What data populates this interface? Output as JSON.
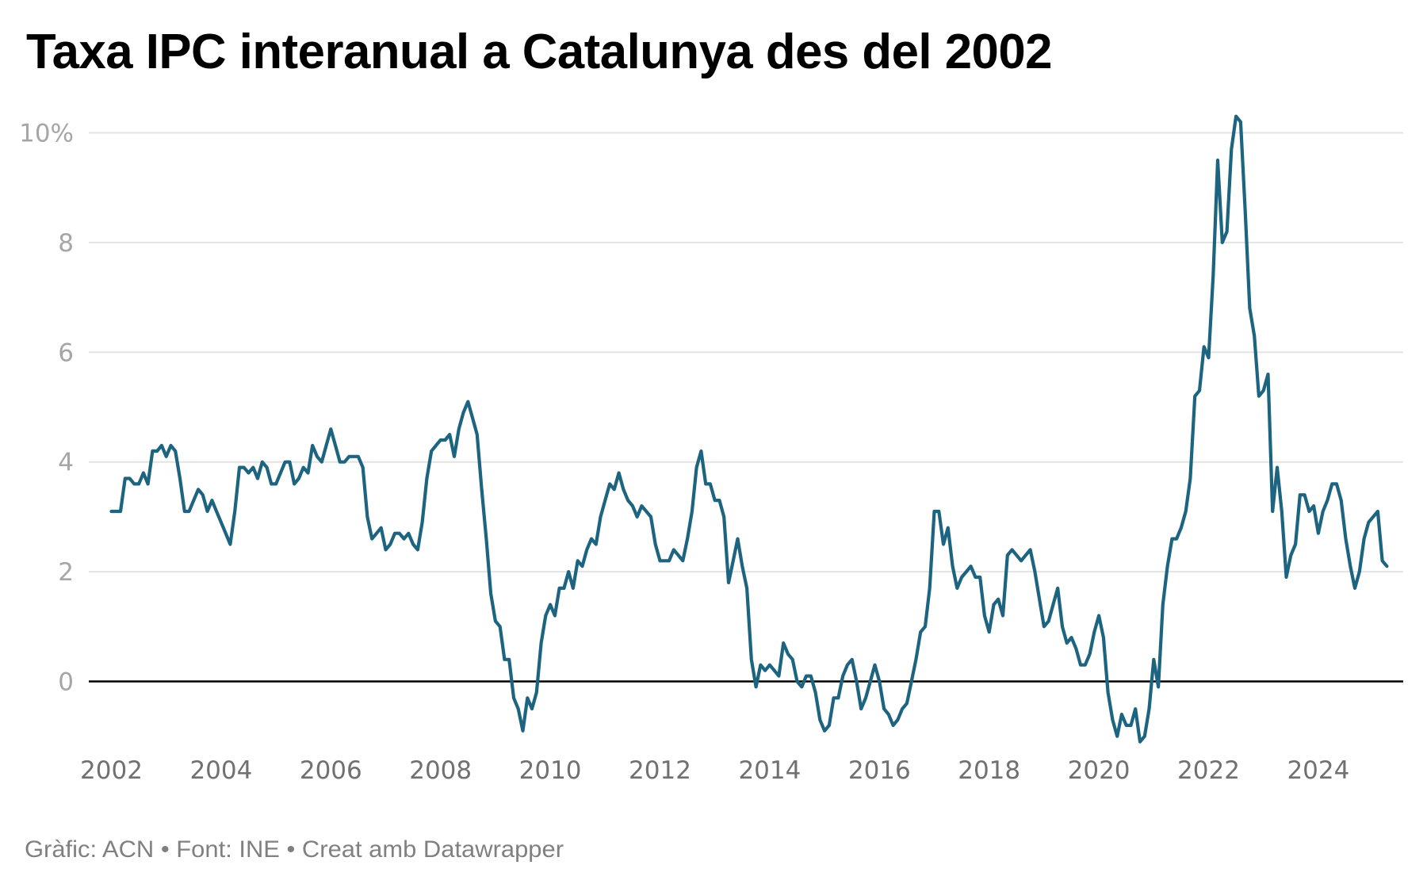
{
  "chart_data": {
    "type": "line",
    "title": "Taxa IPC interanual a Catalunya des del 2002",
    "xlabel": "",
    "ylabel": "",
    "ylim": [
      -1.2,
      10.5
    ],
    "xlim": [
      2002,
      2025.75
    ],
    "grid": true,
    "y_ticks": [
      {
        "value": 10,
        "label": "10%"
      },
      {
        "value": 8,
        "label": "8"
      },
      {
        "value": 6,
        "label": "6"
      },
      {
        "value": 4,
        "label": "4"
      },
      {
        "value": 2,
        "label": "2"
      },
      {
        "value": 0,
        "label": "0"
      }
    ],
    "x_ticks": [
      {
        "value": 2002,
        "label": "2002"
      },
      {
        "value": 2004,
        "label": "2004"
      },
      {
        "value": 2006,
        "label": "2006"
      },
      {
        "value": 2008,
        "label": "2008"
      },
      {
        "value": 2010,
        "label": "2010"
      },
      {
        "value": 2012,
        "label": "2012"
      },
      {
        "value": 2014,
        "label": "2014"
      },
      {
        "value": 2016,
        "label": "2016"
      },
      {
        "value": 2018,
        "label": "2018"
      },
      {
        "value": 2020,
        "label": "2020"
      },
      {
        "value": 2022,
        "label": "2022"
      },
      {
        "value": 2024,
        "label": "2024"
      }
    ],
    "series": [
      {
        "name": "Taxa IPC interanual (%)",
        "color": "#1d6480",
        "start": "2002-01",
        "frequency": "monthly",
        "values": [
          3.1,
          3.1,
          3.1,
          3.7,
          3.7,
          3.6,
          3.6,
          3.8,
          3.6,
          4.2,
          4.2,
          4.3,
          4.1,
          4.3,
          4.2,
          3.7,
          3.1,
          3.1,
          3.3,
          3.5,
          3.4,
          3.1,
          3.3,
          3.1,
          2.9,
          2.7,
          2.5,
          3.1,
          3.9,
          3.9,
          3.8,
          3.9,
          3.7,
          4.0,
          3.9,
          3.6,
          3.6,
          3.8,
          4.0,
          4.0,
          3.6,
          3.7,
          3.9,
          3.8,
          4.3,
          4.1,
          4.0,
          4.3,
          4.6,
          4.3,
          4.0,
          4.0,
          4.1,
          4.1,
          4.1,
          3.9,
          3.0,
          2.6,
          2.7,
          2.8,
          2.4,
          2.5,
          2.7,
          2.7,
          2.6,
          2.7,
          2.5,
          2.4,
          2.9,
          3.7,
          4.2,
          4.3,
          4.4,
          4.4,
          4.5,
          4.1,
          4.6,
          4.9,
          5.1,
          4.8,
          4.5,
          3.5,
          2.6,
          1.6,
          1.1,
          1.0,
          0.4,
          0.4,
          -0.3,
          -0.5,
          -0.9,
          -0.3,
          -0.5,
          -0.2,
          0.7,
          1.2,
          1.4,
          1.2,
          1.7,
          1.7,
          2.0,
          1.7,
          2.2,
          2.1,
          2.4,
          2.6,
          2.5,
          3.0,
          3.3,
          3.6,
          3.5,
          3.8,
          3.5,
          3.3,
          3.2,
          3.0,
          3.2,
          3.1,
          3.0,
          2.5,
          2.2,
          2.2,
          2.2,
          2.4,
          2.3,
          2.2,
          2.6,
          3.1,
          3.9,
          4.2,
          3.6,
          3.6,
          3.3,
          3.3,
          3.0,
          1.8,
          2.2,
          2.6,
          2.1,
          1.7,
          0.4,
          -0.1,
          0.3,
          0.2,
          0.3,
          0.2,
          0.1,
          0.7,
          0.5,
          0.4,
          0.0,
          -0.1,
          0.1,
          0.1,
          -0.2,
          -0.7,
          -0.9,
          -0.8,
          -0.3,
          -0.3,
          0.1,
          0.3,
          0.4,
          0.0,
          -0.5,
          -0.3,
          0.0,
          0.3,
          0.0,
          -0.5,
          -0.6,
          -0.8,
          -0.7,
          -0.5,
          -0.4,
          0.0,
          0.4,
          0.9,
          1.0,
          1.7,
          3.1,
          3.1,
          2.5,
          2.8,
          2.1,
          1.7,
          1.9,
          2.0,
          2.1,
          1.9,
          1.9,
          1.2,
          0.9,
          1.4,
          1.5,
          1.2,
          2.3,
          2.4,
          2.3,
          2.2,
          2.3,
          2.4,
          2.0,
          1.5,
          1.0,
          1.1,
          1.4,
          1.7,
          1.0,
          0.7,
          0.8,
          0.6,
          0.3,
          0.3,
          0.5,
          0.9,
          1.2,
          0.8,
          -0.2,
          -0.7,
          -1.0,
          -0.6,
          -0.8,
          -0.8,
          -0.5,
          -1.1,
          -1.0,
          -0.5,
          0.4,
          -0.1,
          1.4,
          2.1,
          2.6,
          2.6,
          2.8,
          3.1,
          3.7,
          5.2,
          5.3,
          6.1,
          5.9,
          7.4,
          9.5,
          8.0,
          8.2,
          9.7,
          10.3,
          10.2,
          8.6,
          6.8,
          6.3,
          5.2,
          5.3,
          5.6,
          3.1,
          3.9,
          3.1,
          1.9,
          2.3,
          2.5,
          3.4,
          3.4,
          3.1,
          3.2,
          2.7,
          3.1,
          3.3,
          3.6,
          3.6,
          3.3,
          2.6,
          2.1,
          1.7,
          2.0,
          2.6,
          2.9,
          3.0,
          3.1,
          2.2,
          2.1
        ]
      }
    ]
  },
  "header": {
    "title": "Taxa IPC interanual a Catalunya des del 2002"
  },
  "footer": {
    "text": "Gràfic: ACN • Font: INE • Creat amb Datawrapper"
  },
  "colors": {
    "line": "#1d6480",
    "gridline": "#e3e3e3",
    "zero_line": "#000000",
    "y_tick_label": "#a6a6a6",
    "x_tick_label": "#707070",
    "footer_text": "#808080"
  }
}
